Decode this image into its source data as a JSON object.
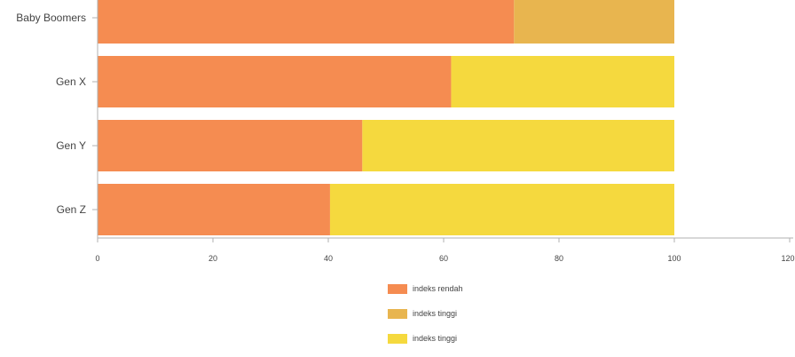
{
  "chart_data": {
    "type": "bar",
    "orientation": "horizontal",
    "stacked": true,
    "categories": [
      "Baby Boomers",
      "Gen X",
      "Gen Y",
      "Gen Z"
    ],
    "series": [
      {
        "name": "indeks rendah",
        "color": "#F58C51",
        "values": [
          72.2,
          61.3,
          45.9,
          40.3
        ]
      },
      {
        "name": "indeks tinggi",
        "color": "#E8B54F",
        "values": [
          27.8,
          0,
          0,
          0
        ]
      },
      {
        "name": "indeks tinggi",
        "color": "#F5D93E",
        "values": [
          0,
          38.7,
          54.1,
          59.7
        ]
      }
    ],
    "xlim": [
      0,
      120
    ],
    "xticks": [
      0,
      20,
      40,
      60,
      80,
      100,
      120
    ],
    "grid": false,
    "legend_position": "bottom"
  }
}
